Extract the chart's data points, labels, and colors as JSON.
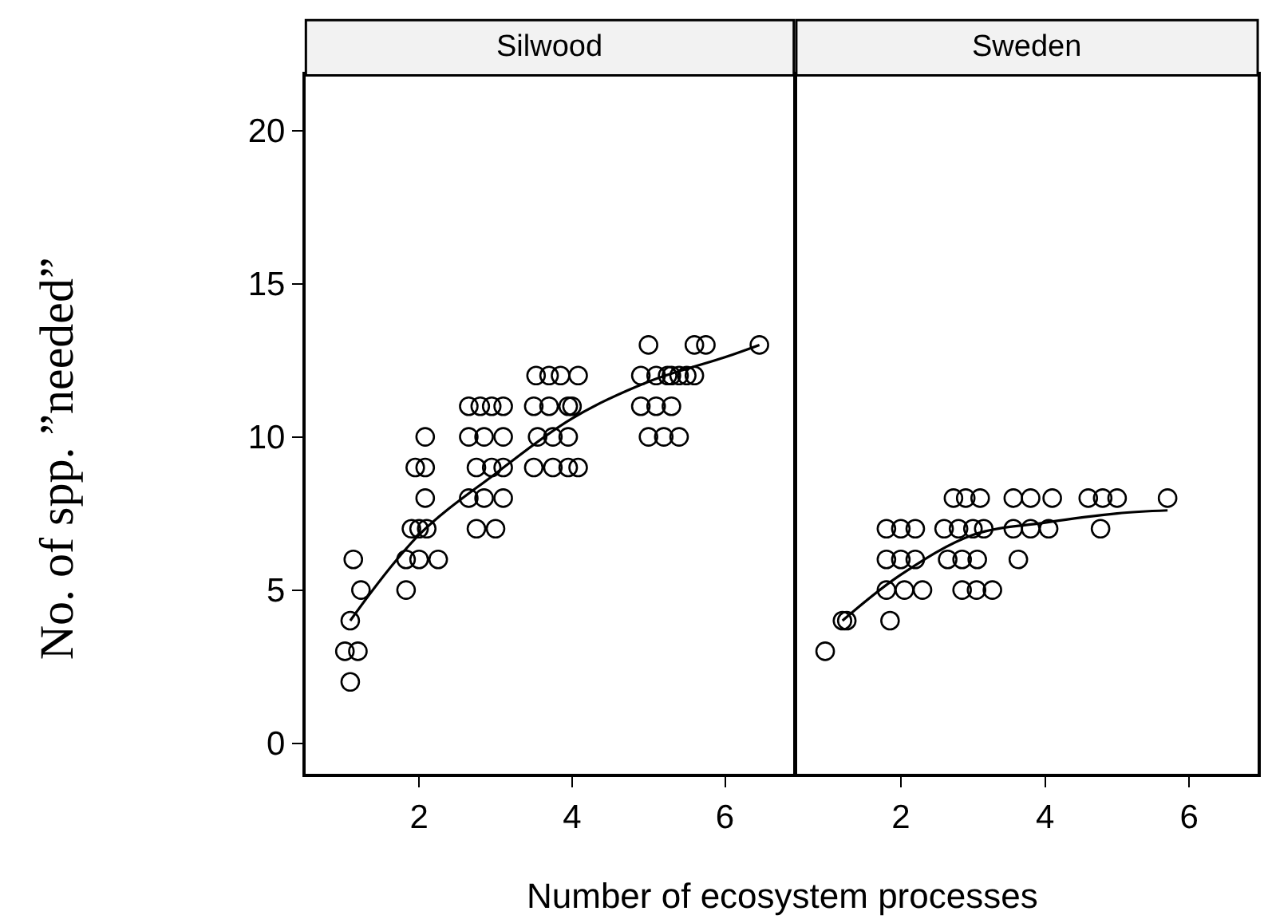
{
  "chart_data": [
    {
      "type": "scatter",
      "title": "Silwood",
      "ylabel": "No. of spp. ”needed”",
      "xlabel": "Number of ecosystem processes",
      "xlim": [
        0.52,
        6.9
      ],
      "xticks": [
        2,
        4,
        6
      ],
      "ylim": [
        -1,
        21.8
      ],
      "yticks": [
        0,
        5,
        10,
        15,
        20
      ],
      "grid": false,
      "series": [
        {
          "marker": "circle",
          "color": "#000000",
          "x": [
            1.1,
            1.03,
            1.2,
            1.1,
            1.24,
            1.14,
            1.83,
            1.83,
            2.0,
            2.25,
            1.9,
            2.0,
            2.1,
            2.08,
            1.95,
            2.08,
            2.08,
            2.65,
            2.8,
            2.95,
            3.1,
            2.65,
            2.85,
            3.1,
            2.75,
            2.95,
            3.1,
            2.65,
            2.85,
            3.1,
            2.75,
            3.0,
            3.53,
            3.7,
            3.85,
            4.08,
            3.5,
            3.7,
            3.95,
            4.0,
            3.55,
            3.75,
            3.95,
            3.5,
            3.75,
            3.95,
            4.08,
            5.0,
            4.9,
            5.1,
            5.25,
            5.4,
            4.9,
            5.1,
            5.3,
            5.0,
            5.2,
            5.4,
            5.6,
            5.75,
            5.3,
            5.5,
            5.6,
            6.45
          ],
          "values": [
            2,
            3,
            3,
            4,
            5,
            6,
            5,
            6,
            6,
            6,
            7,
            7,
            7,
            8,
            9,
            9,
            10,
            11,
            11,
            11,
            11,
            10,
            10,
            10,
            9,
            9,
            9,
            8,
            8,
            8,
            7,
            7,
            12,
            12,
            12,
            12,
            11,
            11,
            11,
            11,
            10,
            10,
            10,
            9,
            9,
            9,
            9,
            13,
            12,
            12,
            12,
            12,
            11,
            11,
            11,
            10,
            10,
            10,
            13,
            13,
            12,
            12,
            12,
            13
          ]
        },
        {
          "type": "line",
          "marker": "none",
          "color": "#000000",
          "x": [
            1.1,
            2,
            3,
            4,
            5,
            6,
            6.45
          ],
          "values": [
            4,
            6.8,
            8.8,
            10.6,
            11.8,
            12.6,
            13
          ]
        }
      ]
    },
    {
      "type": "scatter",
      "title": "Sweden",
      "xlim": [
        0.55,
        6.95
      ],
      "xticks": [
        2,
        4,
        6
      ],
      "ylim": [
        -1,
        21.8
      ],
      "yticks": [
        0,
        5,
        10,
        15,
        20
      ],
      "tick_labels": "x",
      "grid": false,
      "series": [
        {
          "marker": "circle",
          "color": "#000000",
          "x": [
            0.95,
            1.19,
            1.25,
            1.85,
            1.8,
            2.05,
            2.3,
            1.8,
            2.0,
            2.2,
            1.8,
            2.0,
            2.2,
            2.85,
            3.05,
            3.27,
            2.65,
            2.85,
            3.06,
            2.6,
            2.8,
            3.0,
            3.15,
            2.73,
            2.9,
            3.1,
            3.63,
            3.56,
            3.8,
            4.05,
            3.56,
            3.8,
            4.1,
            4.77,
            4.6,
            4.8,
            5.0,
            5.7
          ],
          "values": [
            3,
            4,
            4,
            4,
            5,
            5,
            5,
            6,
            6,
            6,
            7,
            7,
            7,
            5,
            5,
            5,
            6,
            6,
            6,
            7,
            7,
            7,
            7,
            8,
            8,
            8,
            6,
            7,
            7,
            7,
            8,
            8,
            8,
            7,
            8,
            8,
            8,
            8
          ]
        },
        {
          "type": "line",
          "marker": "none",
          "color": "#000000",
          "x": [
            1.19,
            2,
            3,
            4,
            5,
            5.7
          ],
          "values": [
            4,
            5.5,
            6.8,
            7.2,
            7.5,
            7.6
          ]
        }
      ]
    }
  ]
}
